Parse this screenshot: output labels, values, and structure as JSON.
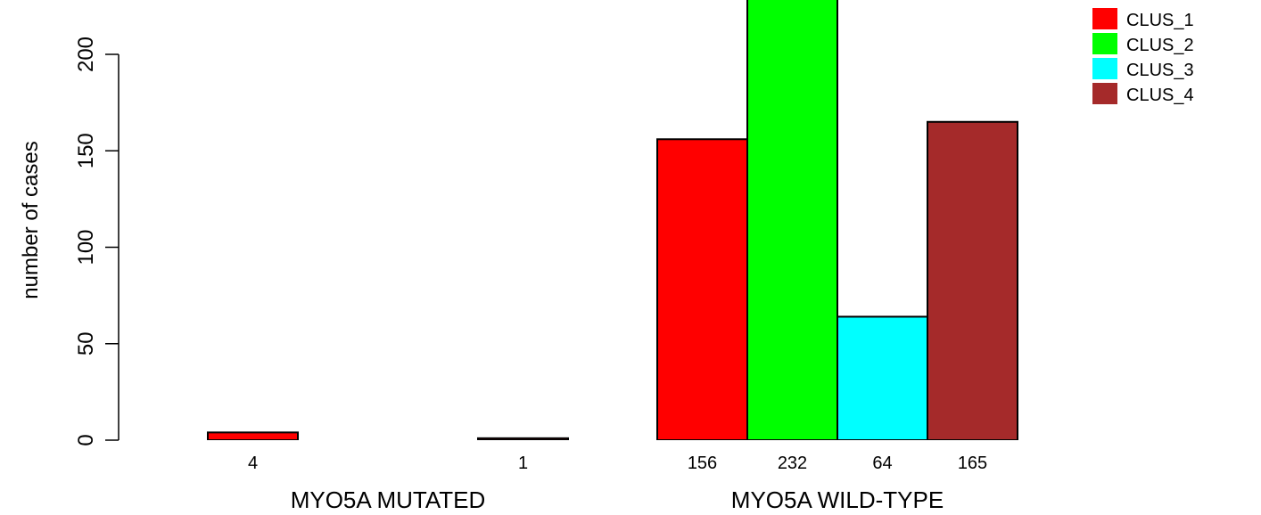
{
  "chart_data": {
    "type": "bar",
    "ylabel": "number of cases",
    "ylim": [
      0,
      200
    ],
    "y_ticks": [
      0,
      50,
      100,
      150,
      200
    ],
    "series": [
      {
        "name": "CLUS_1",
        "color": "#FF0000"
      },
      {
        "name": "CLUS_2",
        "color": "#00FF00"
      },
      {
        "name": "CLUS_3",
        "color": "#00FFFF"
      },
      {
        "name": "CLUS_4",
        "color": "#A52A2A"
      }
    ],
    "groups": [
      {
        "label": "MYO5A MUTATED",
        "values": [
          4,
          0,
          0,
          1
        ],
        "value_labels": [
          "4",
          "",
          "",
          "1"
        ]
      },
      {
        "label": "MYO5A WILD-TYPE",
        "values": [
          156,
          232,
          64,
          165
        ],
        "value_labels": [
          "156",
          "232",
          "64",
          "165"
        ]
      }
    ],
    "grid": false,
    "legend_position": "top-right"
  }
}
